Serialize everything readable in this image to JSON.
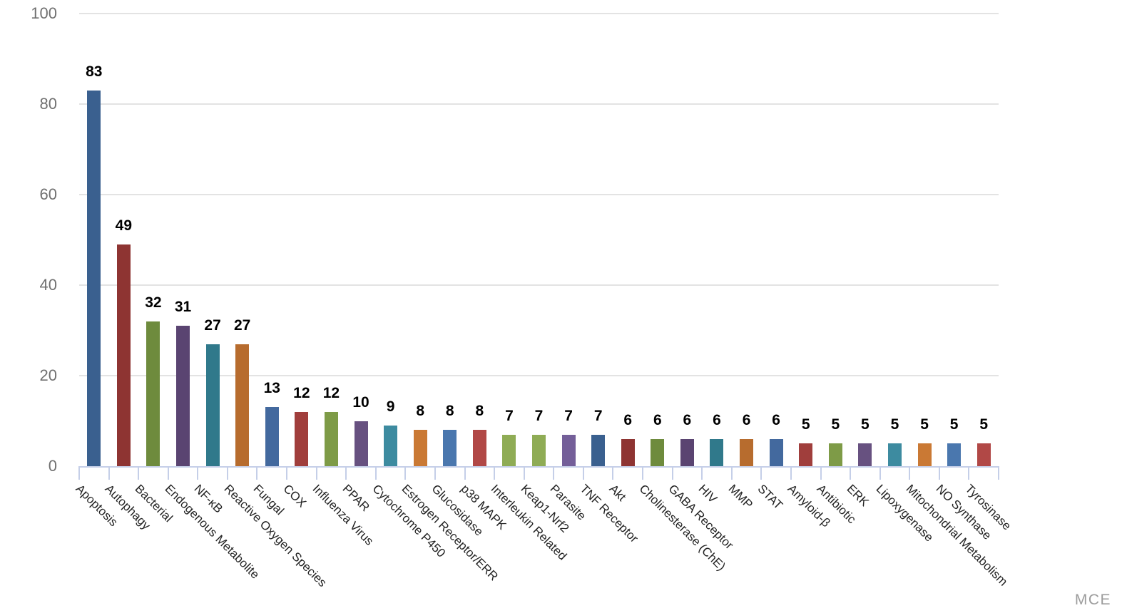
{
  "chart_data": {
    "type": "bar",
    "title": "",
    "xlabel": "",
    "ylabel": "",
    "ylim": [
      0,
      100
    ],
    "yticks": [
      0,
      20,
      40,
      60,
      80,
      100
    ],
    "grid": true,
    "legend": false,
    "value_labels": true,
    "category_label_rotation_deg": 45,
    "categories": [
      "Apoptosis",
      "Autophagy",
      "Bacterial",
      "Endogenous Metabolite",
      "NF-κB",
      "Reactive Oxygen Species",
      "Fungal",
      "COX",
      "Influenza Virus",
      "PPAR",
      "Cytochrome P450",
      "Estrogen Receptor/ERR",
      "Glucosidase",
      "p38 MAPK",
      "Interleukin Related",
      "Keap1-Nrf2",
      "Parasite",
      "TNF Receptor",
      "Akt",
      "Cholinesterase (ChE)",
      "GABA Receptor",
      "HIV",
      "MMP",
      "STAT",
      "Amyloid-β",
      "Antibiotic",
      "ERK",
      "Lipoxygenase",
      "Mitochondrial Metabolism",
      "NO Synthase",
      "Tyrosinase"
    ],
    "values": [
      83,
      49,
      32,
      31,
      27,
      27,
      13,
      12,
      12,
      10,
      9,
      8,
      8,
      8,
      7,
      7,
      7,
      7,
      6,
      6,
      6,
      6,
      6,
      6,
      5,
      5,
      5,
      5,
      5,
      5,
      5
    ],
    "bar_colors": [
      "#3A608F",
      "#8E3432",
      "#6E8B3D",
      "#5A4471",
      "#30798B",
      "#B76C2E",
      "#43699E",
      "#A03E3C",
      "#7E9B47",
      "#675180",
      "#3D8BA0",
      "#CA7934",
      "#4A77AE",
      "#B14846",
      "#8FAC55",
      "#8FAC55",
      "#745F99",
      "#3A608F",
      "#8E3432",
      "#6E8B3D",
      "#5A4471",
      "#30798B",
      "#B76C2E",
      "#43699E",
      "#A03E3C",
      "#7E9B47",
      "#675180",
      "#3D8BA0",
      "#CA7934",
      "#4A77AE",
      "#B14846"
    ]
  },
  "watermark": {
    "label": "MCE",
    "color": "#9C9C9C"
  },
  "colors": {
    "background": "#FFFFFF",
    "gridline": "#E3E3E3",
    "axis": "#C5CFE8",
    "y_tick_label": "#707070",
    "value_label": "#000000",
    "category_label": "#222222"
  }
}
